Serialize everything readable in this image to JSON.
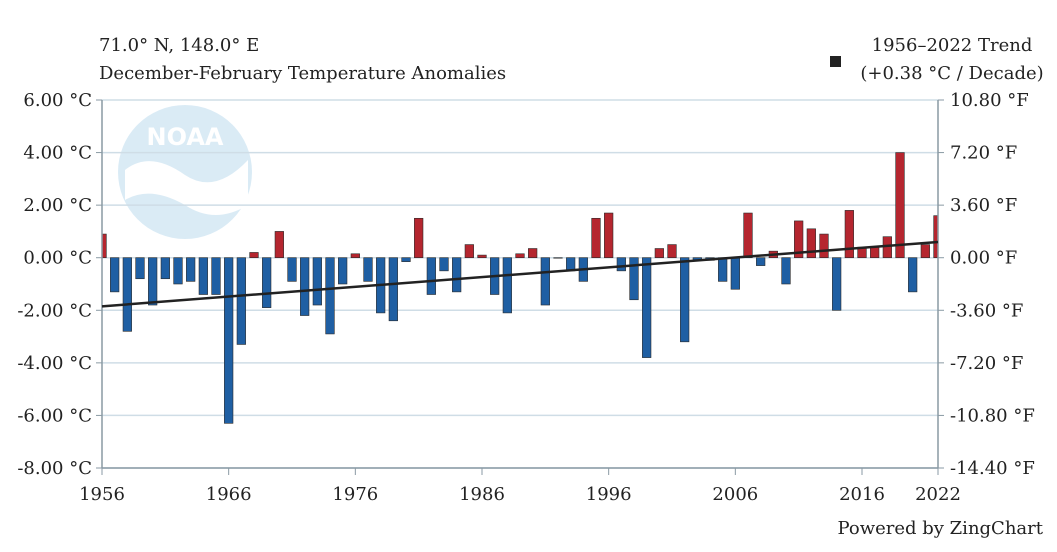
{
  "header": {
    "location": "71.0° N, 148.0° E",
    "subtitle": "December-February Temperature Anomalies"
  },
  "legend": {
    "label": "1956–2022 Trend",
    "detail": "(+0.38 °C / Decade)",
    "placement": "top-right"
  },
  "watermark": "NOAA",
  "footer": {
    "powered_by": "Powered by ZingChart"
  },
  "colors": {
    "positive": "#b5262f",
    "negative": "#1f5fa3",
    "trend": "#222222",
    "grid": "#cfdde6",
    "axis": "#8a9aa4"
  },
  "chart_data": {
    "type": "bar",
    "x_start": 1956,
    "x_end": 2022,
    "x_tick_labels": [
      "1956",
      "1966",
      "1976",
      "1986",
      "1996",
      "2006",
      "2016",
      "2022"
    ],
    "y_left_ticks": [
      "6.00 °C",
      "4.00 °C",
      "2.00 °C",
      "0.00 °C",
      "-2.00 °C",
      "-4.00 °C",
      "-6.00 °C",
      "-8.00 °C"
    ],
    "y_right_ticks": [
      "10.80 °F",
      "7.20 °F",
      "3.60 °F",
      "0.00 °F",
      "-3.60 °F",
      "-7.20 °F",
      "-10.80 °F",
      "-14.40 °F"
    ],
    "ylim": [
      -8,
      6
    ],
    "grid": true,
    "years": [
      1956,
      1957,
      1958,
      1959,
      1960,
      1961,
      1962,
      1963,
      1964,
      1965,
      1966,
      1967,
      1968,
      1969,
      1970,
      1971,
      1972,
      1973,
      1974,
      1975,
      1976,
      1977,
      1978,
      1979,
      1980,
      1981,
      1982,
      1983,
      1984,
      1985,
      1986,
      1987,
      1988,
      1989,
      1990,
      1991,
      1992,
      1993,
      1994,
      1995,
      1996,
      1997,
      1998,
      1999,
      2000,
      2001,
      2002,
      2003,
      2004,
      2005,
      2006,
      2007,
      2008,
      2009,
      2010,
      2011,
      2012,
      2013,
      2014,
      2015,
      2016,
      2017,
      2018,
      2019,
      2020,
      2021,
      2022
    ],
    "values": [
      0.9,
      -1.3,
      -2.8,
      -0.8,
      -1.8,
      -0.8,
      -1.0,
      -0.9,
      -1.4,
      -1.4,
      -6.3,
      -3.3,
      0.2,
      -1.9,
      1.0,
      -0.9,
      -2.2,
      -1.8,
      -2.9,
      -1.0,
      0.15,
      -0.9,
      -2.1,
      -2.4,
      -0.15,
      1.5,
      -1.4,
      -0.5,
      -1.3,
      0.5,
      0.1,
      -1.4,
      -2.1,
      0.15,
      0.35,
      -1.8,
      0.0,
      -0.5,
      -0.9,
      1.5,
      1.7,
      -0.5,
      -1.6,
      -3.8,
      0.35,
      0.5,
      -3.2,
      -0.1,
      -0.1,
      -0.9,
      -1.2,
      1.7,
      -0.3,
      0.25,
      -1.0,
      1.4,
      1.1,
      0.9,
      -2.0,
      1.8,
      0.4,
      0.4,
      0.8,
      4.0,
      -1.3,
      0.5,
      1.6
    ],
    "trend": {
      "start": -1.85,
      "end": 0.6
    }
  }
}
